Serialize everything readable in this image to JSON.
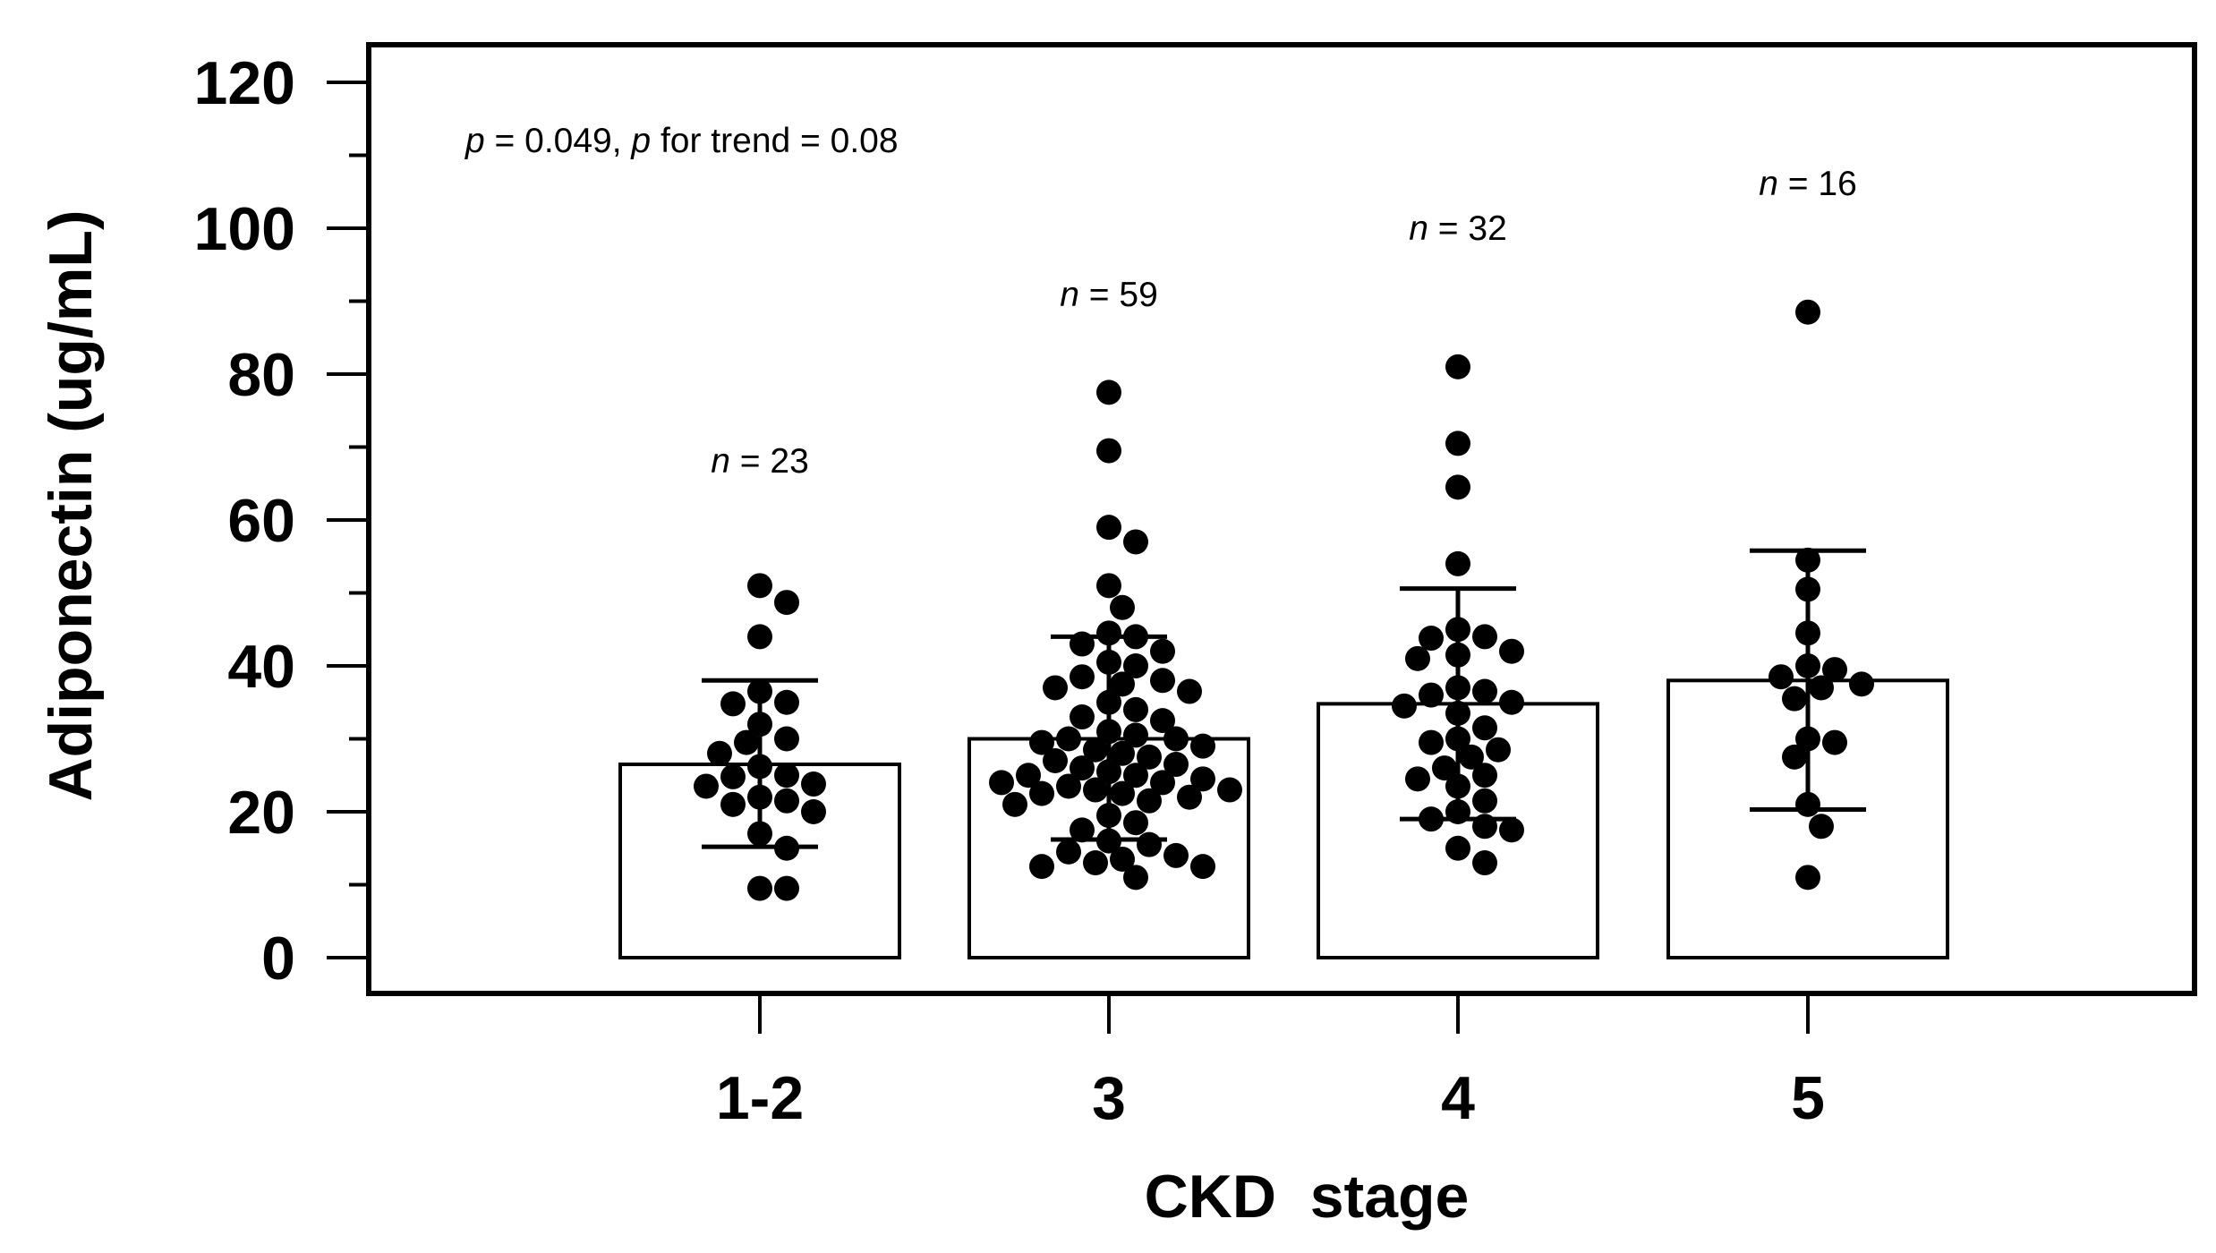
{
  "chart_data": {
    "type": "bar",
    "title": "",
    "xlabel": "CKD  stage",
    "ylabel": "Adiponectin (ug/mL)",
    "ylim": [
      0,
      120
    ],
    "yticks": [
      0,
      20,
      40,
      60,
      80,
      100,
      120
    ],
    "ytick_labels": [
      "0",
      "20",
      "40",
      "60",
      "80",
      "100",
      "120"
    ],
    "categories": [
      "1-2",
      "3",
      "4",
      "5"
    ],
    "values": [
      26.5,
      30.0,
      34.8,
      38.0
    ],
    "error_low": [
      15.2,
      16.2,
      19.0,
      20.3
    ],
    "error_high": [
      38.0,
      44.0,
      50.6,
      55.8
    ],
    "n_labels": [
      {
        "italic": "n",
        "text": " = 23"
      },
      {
        "italic": "n",
        "text": " = 59"
      },
      {
        "italic": "n",
        "text": " = 32"
      },
      {
        "italic": "n",
        "text": " = 16"
      }
    ],
    "stats_annotation": {
      "p_symbol_1": "p",
      "text_1": " = 0.049, ",
      "p_symbol_2": "p",
      "text_2": " for trend = 0.08"
    },
    "points": [
      [
        51,
        48.7,
        44,
        36.5,
        35,
        34.8,
        32,
        30,
        29.5,
        28,
        26.2,
        25,
        24.8,
        23.8,
        23.5,
        22,
        21.5,
        21,
        20,
        17,
        15,
        9.5,
        9.5
      ],
      [
        77.5,
        69.5,
        59,
        57,
        51,
        48,
        44.5,
        44,
        43,
        42,
        40.5,
        40,
        38.5,
        38,
        37.5,
        37,
        36.5,
        35,
        34,
        33,
        32.5,
        31,
        30.5,
        30,
        30,
        29.5,
        29,
        28.5,
        28,
        27.5,
        27,
        26.5,
        26,
        25.5,
        25,
        25,
        24.5,
        24,
        24,
        23.5,
        23,
        23,
        22.5,
        22.5,
        22,
        21.5,
        21,
        19.5,
        18.5,
        17.5,
        16,
        15.5,
        14.5,
        14,
        13.5,
        13,
        12.5,
        12.5,
        11
      ],
      [
        81,
        70.5,
        64.5,
        54,
        45,
        44,
        43.8,
        42,
        41.5,
        41,
        37,
        36.5,
        36,
        35,
        34.5,
        33.5,
        31.5,
        30,
        29.5,
        28.5,
        27.5,
        26,
        25,
        24.5,
        23.5,
        21.5,
        20,
        19,
        18,
        17.5,
        15,
        13
      ],
      [
        88.5,
        54.5,
        50.5,
        44.5,
        40,
        39.5,
        38.5,
        37.5,
        37,
        35.5,
        30,
        29.5,
        27.5,
        21,
        18,
        11
      ]
    ]
  }
}
